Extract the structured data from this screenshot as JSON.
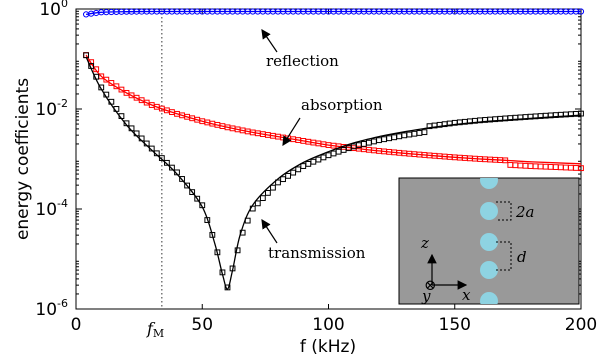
{
  "chart_data": {
    "type": "line",
    "xlabel": "f (kHz)",
    "ylabel": "energy coefficients",
    "xlim": [
      0,
      200
    ],
    "ylim": [
      1e-06,
      1
    ],
    "yscale": "log",
    "x_ticks": [
      {
        "value": 0,
        "label": "0"
      },
      {
        "value": 50,
        "label": "50"
      },
      {
        "value": 100,
        "label": "100"
      },
      {
        "value": 150,
        "label": "150"
      },
      {
        "value": 200,
        "label": "200"
      }
    ],
    "y_ticks": [
      {
        "value": 1,
        "base": "10",
        "exp": "0"
      },
      {
        "value": 0.01,
        "base": "10",
        "exp": "-2"
      },
      {
        "value": 0.0001,
        "base": "10",
        "exp": "-4"
      },
      {
        "value": 1e-06,
        "base": "10",
        "exp": "-6"
      }
    ],
    "fm_marker": {
      "x": 34,
      "label_base": "f",
      "label_sub": "M"
    },
    "series": [
      {
        "name": "reflection",
        "color": "#0000ff",
        "marker": "circle",
        "x": [
          4,
          10,
          20,
          30,
          50,
          80,
          120,
          160,
          200
        ],
        "y": [
          0.78,
          0.86,
          0.885,
          0.89,
          0.89,
          0.89,
          0.89,
          0.89,
          0.89
        ]
      },
      {
        "name": "absorption",
        "color": "#ff0000",
        "marker": "square",
        "x": [
          4,
          10,
          20,
          30,
          40,
          50,
          60,
          70,
          80,
          90,
          100,
          110,
          120,
          130,
          140,
          150,
          160,
          170,
          180,
          190,
          200
        ],
        "y": [
          0.12,
          0.045,
          0.021,
          0.012,
          0.008,
          0.0057,
          0.0043,
          0.0034,
          0.0028,
          0.0023,
          0.0019,
          0.00165,
          0.00145,
          0.0013,
          0.00118,
          0.00108,
          0.001,
          0.00094,
          0.00088,
          0.00084,
          0.0008
        ]
      },
      {
        "name": "transmission",
        "color": "#000000",
        "marker": "square",
        "x": [
          4,
          10,
          20,
          30,
          40,
          50,
          55,
          58,
          60,
          62,
          65,
          70,
          80,
          90,
          100,
          110,
          120,
          130,
          140,
          150,
          160,
          170,
          180,
          190,
          200
        ],
        "y": [
          0.11,
          0.025,
          0.0048,
          0.0015,
          0.0005,
          0.00011,
          2e-05,
          5e-06,
          2.5e-06,
          6e-06,
          3e-05,
          0.00012,
          0.0004,
          0.00085,
          0.0014,
          0.0021,
          0.0028,
          0.0035,
          0.0042,
          0.0049,
          0.0055,
          0.006,
          0.0065,
          0.007,
          0.0075
        ]
      }
    ],
    "annotations": [
      {
        "text": "reflection",
        "target_series": "reflection"
      },
      {
        "text": "absorption",
        "target_series": "absorption"
      },
      {
        "text": "transmission",
        "target_series": "transmission"
      }
    ],
    "inset": {
      "background": "#999999",
      "circle_color": "#8ed3e2",
      "labels": {
        "two_a": "2a",
        "d": "d",
        "z": "z",
        "x": "x",
        "y": "y",
        "y_symbol": "⊗"
      }
    }
  }
}
